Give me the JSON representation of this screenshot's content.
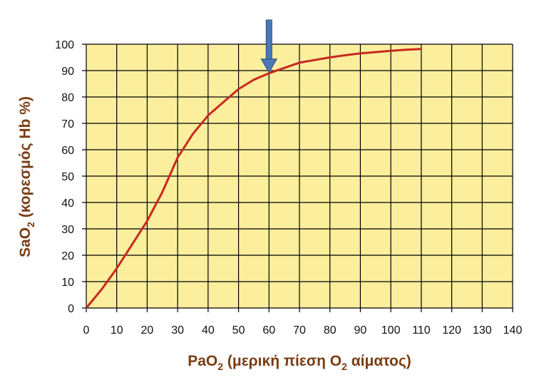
{
  "chart_data": {
    "type": "line",
    "xlabel": {
      "main": "PaO",
      "sub": "2",
      "rest1": " (μερική πίεση O",
      "sub2": "2",
      "rest2": " αίματος)"
    },
    "ylabel": {
      "main": "SaO",
      "sub": "2",
      "rest": " (κορεσμός Hb %)"
    },
    "xlim": [
      0,
      140
    ],
    "ylim": [
      0,
      100
    ],
    "x_ticks": [
      0,
      10,
      20,
      30,
      40,
      50,
      60,
      70,
      80,
      90,
      100,
      110,
      120,
      130,
      140
    ],
    "y_ticks": [
      0,
      10,
      20,
      30,
      40,
      50,
      60,
      70,
      80,
      90,
      100
    ],
    "grid": true,
    "series": [
      {
        "color": "#c8281e",
        "points": [
          [
            0,
            0
          ],
          [
            5,
            7
          ],
          [
            10,
            15
          ],
          [
            15,
            24
          ],
          [
            20,
            33
          ],
          [
            25,
            44
          ],
          [
            30,
            57
          ],
          [
            35,
            66
          ],
          [
            40,
            73
          ],
          [
            45,
            78
          ],
          [
            50,
            83
          ],
          [
            55,
            86.5
          ],
          [
            60,
            89
          ],
          [
            65,
            91
          ],
          [
            70,
            93
          ],
          [
            75,
            94
          ],
          [
            80,
            95
          ],
          [
            85,
            95.8
          ],
          [
            90,
            96.5
          ],
          [
            95,
            97
          ],
          [
            100,
            97.5
          ],
          [
            105,
            97.9
          ],
          [
            110,
            98.2
          ]
        ]
      }
    ],
    "annotation": {
      "kind": "arrow",
      "x": 60,
      "y": 89,
      "color": "#4a78b4"
    },
    "colors": {
      "background": "#fbee9d",
      "grid": "#000000",
      "text": "#7a3c12"
    }
  }
}
